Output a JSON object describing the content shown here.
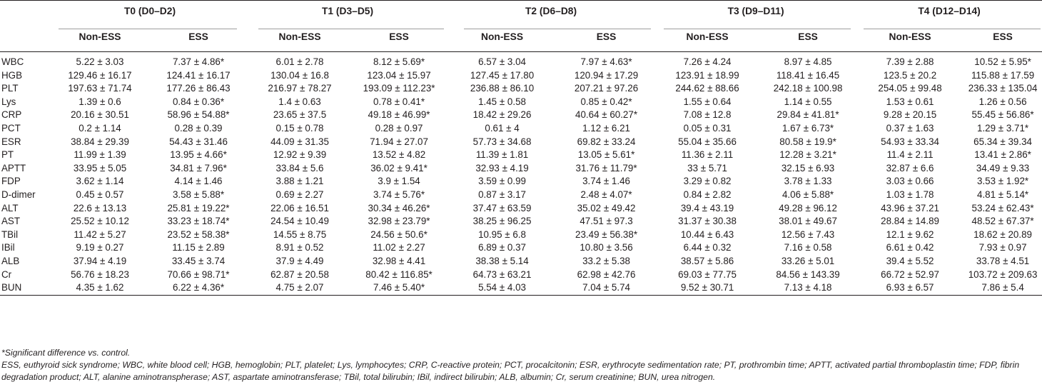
{
  "groups": [
    {
      "label": "T0 (D0–D2)",
      "sub": [
        "Non-ESS",
        "ESS"
      ]
    },
    {
      "label": "T1 (D3–D5)",
      "sub": [
        "Non-ESS",
        "ESS"
      ]
    },
    {
      "label": "T2 (D6–D8)",
      "sub": [
        "Non-ESS",
        "ESS"
      ]
    },
    {
      "label": "T3 (D9–D11)",
      "sub": [
        "Non-ESS",
        "ESS"
      ]
    },
    {
      "label": "T4 (D12–D14)",
      "sub": [
        "Non-ESS",
        "ESS"
      ]
    }
  ],
  "rows": [
    {
      "label": "WBC",
      "cells": [
        "5.22 ± 3.03",
        "7.37 ± 4.86*",
        "6.01 ± 2.78",
        "8.12 ± 5.69*",
        "6.57 ± 3.04",
        "7.97 ± 4.63*",
        "7.26 ± 4.24",
        "8.97 ± 4.85",
        "7.39 ± 2.88",
        "10.52 ± 5.95*"
      ]
    },
    {
      "label": "HGB",
      "cells": [
        "129.46 ± 16.17",
        "124.41 ± 16.17",
        "130.04 ± 16.8",
        "123.04 ± 15.97",
        "127.45 ± 17.80",
        "120.94 ± 17.29",
        "123.91 ± 18.99",
        "118.41 ± 16.45",
        "123.5 ± 20.2",
        "115.88 ± 17.59"
      ]
    },
    {
      "label": "PLT",
      "cells": [
        "197.63 ± 71.74",
        "177.26 ± 86.43",
        "216.97 ± 78.27",
        "193.09 ± 112.23*",
        "236.88 ± 86.10",
        "207.21 ± 97.26",
        "244.62 ± 88.66",
        "242.18 ± 100.98",
        "254.05 ± 99.48",
        "236.33 ± 135.04"
      ]
    },
    {
      "label": "Lys",
      "cells": [
        "1.39 ± 0.6",
        "0.84 ± 0.36*",
        "1.4 ± 0.63",
        "0.78 ± 0.41*",
        "1.45 ± 0.58",
        "0.85 ± 0.42*",
        "1.55 ± 0.64",
        "1.14 ± 0.55",
        "1.53 ± 0.61",
        "1.26 ± 0.56"
      ]
    },
    {
      "label": "CRP",
      "cells": [
        "20.16 ± 30.51",
        "58.96 ± 54.88*",
        "23.65 ± 37.5",
        "49.18 ± 46.99*",
        "18.42 ± 29.26",
        "40.64 ± 60.27*",
        "7.08 ± 12.8",
        "29.84 ± 41.81*",
        "9.28 ± 20.15",
        "55.45 ± 56.86*"
      ]
    },
    {
      "label": "PCT",
      "cells": [
        "0.2 ± 1.14",
        "0.28 ± 0.39",
        "0.15 ± 0.78",
        "0.28 ± 0.97",
        "0.61 ± 4",
        "1.12 ± 6.21",
        "0.05 ± 0.31",
        "1.67 ± 6.73*",
        "0.37 ± 1.63",
        "1.29 ± 3.71*"
      ]
    },
    {
      "label": "ESR",
      "cells": [
        "38.84 ± 29.39",
        "54.43 ± 31.46",
        "44.09 ± 31.35",
        "71.94 ± 27.07",
        "57.73 ± 34.68",
        "69.82 ± 33.24",
        "55.04 ± 35.66",
        "80.58 ± 19.9*",
        "54.93 ± 33.34",
        "65.34 ± 39.34"
      ]
    },
    {
      "label": "PT",
      "cells": [
        "11.99 ± 1.39",
        "13.95 ± 4.66*",
        "12.92 ± 9.39",
        "13.52 ± 4.82",
        "11.39 ± 1.81",
        "13.05 ± 5.61*",
        "11.36 ± 2.11",
        "12.28 ± 3.21*",
        "11.4 ± 2.11",
        "13.41 ± 2.86*"
      ]
    },
    {
      "label": "APTT",
      "cells": [
        "33.95 ± 5.05",
        "34.81 ± 7.96*",
        "33.84 ± 5.6",
        "36.02 ± 9.41*",
        "32.93 ± 4.19",
        "31.76 ± 11.79*",
        "33 ± 5.71",
        "32.15 ± 6.93",
        "32.87 ± 6.6",
        "34.49 ± 9.33"
      ]
    },
    {
      "label": "FDP",
      "cells": [
        "3.62 ± 1.14",
        "4.14 ± 1.46",
        "3.88 ± 1.21",
        "3.9 ± 1.54",
        "3.59 ± 0.99",
        "3.74 ± 1.46",
        "3.29 ± 0.82",
        "3.78 ± 1.33",
        "3.03 ± 0.66",
        "3.53 ± 1.92*"
      ]
    },
    {
      "label": "D-dimer",
      "cells": [
        "0.45 ± 0.57",
        "3.58 ± 5.88*",
        "0.69 ± 2.27",
        "3.74 ± 5.76*",
        "0.87 ± 3.17",
        "2.48 ± 4.07*",
        "0.84 ± 2.82",
        "4.06 ± 5.88*",
        "1.03 ± 1.78",
        "4.81 ± 5.14*"
      ]
    },
    {
      "label": "ALT",
      "cells": [
        "22.6 ± 13.13",
        "25.81 ± 19.22*",
        "22.06 ± 16.51",
        "30.34 ± 46.26*",
        "37.47 ± 63.59",
        "35.02 ± 49.42",
        "39.4 ± 43.19",
        "49.28 ± 96.12",
        "43.96 ± 37.21",
        "53.24 ± 62.43*"
      ]
    },
    {
      "label": "AST",
      "cells": [
        "25.52 ± 10.12",
        "33.23 ± 18.74*",
        "24.54 ± 10.49",
        "32.98 ± 23.79*",
        "38.25 ± 96.25",
        "47.51 ± 97.3",
        "31.37 ± 30.38",
        "38.01 ± 49.67",
        "28.84 ± 14.89",
        "48.52 ± 67.37*"
      ]
    },
    {
      "label": "TBil",
      "cells": [
        "11.42 ± 5.27",
        "23.52 ± 58.38*",
        "14.55 ± 8.75",
        "24.56 ± 50.6*",
        "10.95 ± 6.8",
        "23.49 ± 56.38*",
        "10.44 ± 6.43",
        "12.56 ± 7.43",
        "12.1 ± 9.62",
        "18.62 ± 20.89"
      ]
    },
    {
      "label": "IBil",
      "cells": [
        "9.19 ± 0.27",
        "11.15 ± 2.89",
        "8.91 ± 0.52",
        "11.02 ± 2.27",
        "6.89 ± 0.37",
        "10.80 ± 3.56",
        "6.44 ± 0.32",
        "7.16 ± 0.58",
        "6.61 ± 0.42",
        "7.93 ± 0.97"
      ]
    },
    {
      "label": "ALB",
      "cells": [
        "37.94 ± 4.19",
        "33.45 ± 3.74",
        "37.9 ± 4.49",
        "32.98 ± 4.41",
        "38.38 ± 5.14",
        "33.2 ± 5.38",
        "38.57 ± 5.86",
        "33.26 ± 5.01",
        "39.4 ± 5.52",
        "33.78 ± 4.51"
      ]
    },
    {
      "label": "Cr",
      "cells": [
        "56.76 ± 18.23",
        "70.66 ± 98.71*",
        "62.87 ± 20.58",
        "80.42 ± 116.85*",
        "64.73 ± 63.21",
        "62.98 ± 42.76",
        "69.03 ± 77.75",
        "84.56 ± 143.39",
        "66.72 ± 52.97",
        "103.72 ± 209.63"
      ]
    },
    {
      "label": "BUN",
      "cells": [
        "4.35 ± 1.62",
        "6.22 ± 4.36*",
        "4.75 ± 2.07",
        "7.46 ± 5.40*",
        "5.54 ± 4.03",
        "7.04 ± 5.74",
        "9.52 ± 30.71",
        "7.13 ± 4.18",
        "6.93 ± 6.57",
        "7.86 ± 5.4"
      ]
    }
  ],
  "notes": [
    "*Significant difference vs. control.",
    "ESS, euthyroid sick syndrome; WBC, white blood cell; HGB, hemoglobin; PLT, platelet; Lys, lymphocytes; CRP, C-reactive protein; PCT, procalcitonin; ESR, erythrocyte sedimentation rate; PT, prothrombin time; APTT, activated partial thromboplastin time; FDP, fibrin degradation product; ALT, alanine aminotranspherase; AST, aspartate aminotransferase; TBil, total bilirubin; IBil, indirect bilirubin; ALB, albumin; Cr, serum creatinine; BUN, urea nitrogen."
  ]
}
